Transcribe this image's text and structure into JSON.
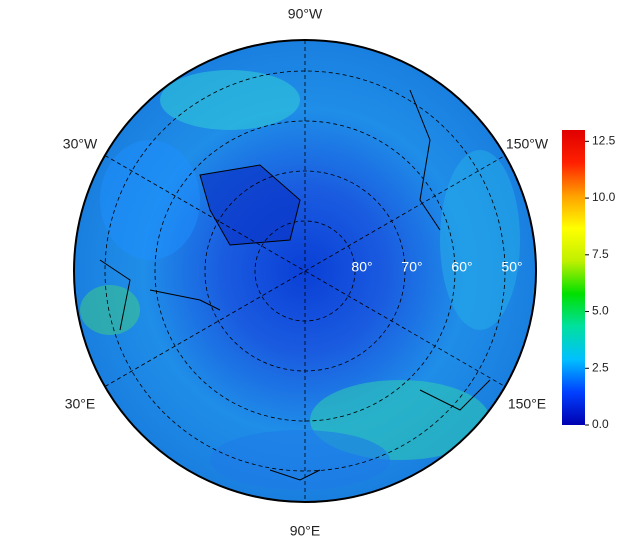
{
  "map": {
    "type": "polar-map",
    "longitude_labels": [
      "90°W",
      "30°W",
      "150°W",
      "30°E",
      "150°E",
      "90°E"
    ],
    "latitude_labels": [
      "80°",
      "70°",
      "60°",
      "50°"
    ],
    "colorbar": {
      "ylim": [
        0,
        13
      ],
      "yticks": [
        {
          "value": 0,
          "label": "0.0"
        },
        2.5,
        {
          "value": 5,
          "label": "5.0"
        },
        7.5,
        {
          "value": 10,
          "label": "10.0"
        },
        12.5
      ],
      "colors": [
        "#0000b0",
        "#0040ff",
        "#00c0ff",
        "#00e0a0",
        "#00e000",
        "#c0f000",
        "#ffff00",
        "#ffa000",
        "#ff2000",
        "#e00000"
      ]
    }
  }
}
